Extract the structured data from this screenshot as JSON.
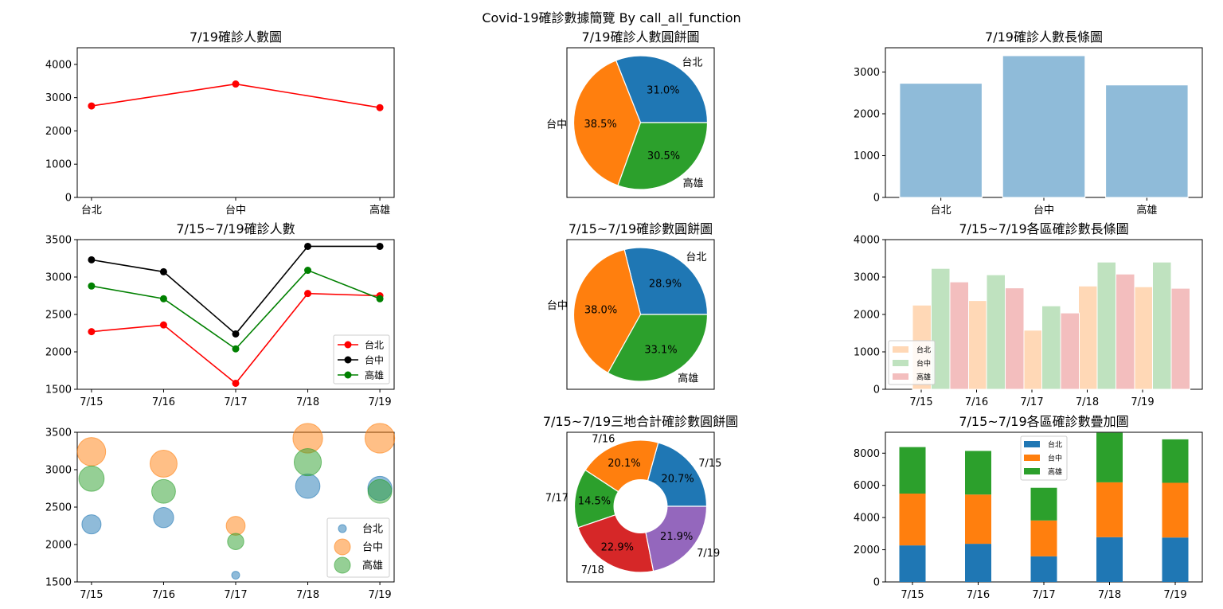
{
  "figure": {
    "suptitle": "Covid-19確診數據簡覽 By call_all_function"
  },
  "colors": {
    "red": "#ff0000",
    "black": "#000000",
    "green": "#008000",
    "c0": "#1f77b4",
    "c1": "#ff7f0e",
    "c2": "#2ca02c",
    "c3": "#d62728",
    "c4": "#9467bd"
  },
  "chart_data": [
    {
      "type": "line",
      "title": "7/19確診人數圖",
      "categories": [
        "台北",
        "台中",
        "高雄"
      ],
      "series": [
        {
          "values": [
            2750,
            3410,
            2700
          ],
          "color": "#ff0000"
        }
      ],
      "ylim": [
        0,
        4500
      ],
      "yticks": [
        0,
        1000,
        2000,
        3000,
        4000
      ]
    },
    {
      "type": "pie",
      "title": "7/19確診人數圓餅圖",
      "labels": [
        "台北",
        "台中",
        "高雄"
      ],
      "values": [
        31.0,
        38.5,
        30.5
      ],
      "pct_labels": [
        "31.0%",
        "38.5%",
        "30.5%"
      ]
    },
    {
      "type": "bar",
      "title": "7/19確診人數長條圖",
      "categories": [
        "台北",
        "台中",
        "高雄"
      ],
      "values": [
        2730,
        3390,
        2690
      ],
      "color": "#1f77b4",
      "ylim": [
        0,
        3580
      ],
      "yticks": [
        0,
        1000,
        2000,
        3000
      ]
    },
    {
      "type": "line",
      "title": "7/15~7/19確診人數",
      "categories": [
        "7/15",
        "7/16",
        "7/17",
        "7/18",
        "7/19"
      ],
      "series": [
        {
          "name": "台北",
          "values": [
            2270,
            2360,
            1580,
            2780,
            2750
          ],
          "color": "#ff0000"
        },
        {
          "name": "台中",
          "values": [
            3230,
            3070,
            2240,
            3410,
            3410
          ],
          "color": "#000000"
        },
        {
          "name": "高雄",
          "values": [
            2880,
            2710,
            2040,
            3090,
            2710
          ],
          "color": "#008000"
        }
      ],
      "ylim": [
        1500,
        3500
      ],
      "yticks": [
        1500,
        2000,
        2500,
        3000,
        3500
      ],
      "legend": "lower-right"
    },
    {
      "type": "pie",
      "title": "7/15~7/19確診數圓餅圖",
      "labels": [
        "台北",
        "台中",
        "高雄"
      ],
      "values": [
        28.9,
        38.0,
        33.1
      ],
      "pct_labels": [
        "28.9%",
        "38.0%",
        "33.1%"
      ]
    },
    {
      "type": "bar",
      "title": "7/15~7/19各區確診數長條圖",
      "categories": [
        "7/15",
        "7/16",
        "7/17",
        "7/18",
        "7/19"
      ],
      "series": [
        {
          "name": "台北",
          "values": [
            2250,
            2370,
            1580,
            2760,
            2740
          ],
          "color": "#ff7f0e"
        },
        {
          "name": "台中",
          "values": [
            3230,
            3060,
            2230,
            3400,
            3400
          ],
          "color": "#2ca02c"
        },
        {
          "name": "高雄",
          "values": [
            2870,
            2710,
            2040,
            3080,
            2700
          ],
          "color": "#d62728"
        }
      ],
      "ylim": [
        0,
        4000
      ],
      "yticks": [
        0,
        1000,
        2000,
        3000,
        4000
      ],
      "legend": "lower-left"
    },
    {
      "type": "scatter",
      "categories": [
        "7/15",
        "7/16",
        "7/17",
        "7/18",
        "7/19"
      ],
      "series": [
        {
          "name": "台北",
          "values": [
            2270,
            2360,
            1590,
            2780,
            2750
          ],
          "color": "#1f77b4"
        },
        {
          "name": "台中",
          "values": [
            3240,
            3080,
            2250,
            3420,
            3420
          ],
          "color": "#ff7f0e"
        },
        {
          "name": "高雄",
          "values": [
            2880,
            2710,
            2040,
            3100,
            2710
          ],
          "color": "#2ca02c"
        }
      ],
      "ylim": [
        1500,
        3500
      ],
      "yticks": [
        1500,
        2000,
        2500,
        3000,
        3500
      ],
      "legend": "lower-right"
    },
    {
      "type": "pie",
      "title": "7/15~7/19三地合計確診數圓餅圖",
      "labels": [
        "7/15",
        "7/16",
        "7/17",
        "7/18",
        "7/19"
      ],
      "values": [
        20.7,
        20.1,
        14.5,
        22.9,
        21.9
      ],
      "pct_labels": [
        "20.7%",
        "20.1%",
        "14.5%",
        "22.9%",
        "21.9%"
      ],
      "donut": true
    },
    {
      "type": "bar",
      "title": "7/15~7/19各區確診數疊加圖",
      "categories": [
        "7/15",
        "7/16",
        "7/17",
        "7/18",
        "7/19"
      ],
      "series": [
        {
          "name": "台北",
          "values": [
            2270,
            2370,
            1590,
            2780,
            2760
          ],
          "color": "#1f77b4"
        },
        {
          "name": "台中",
          "values": [
            3220,
            3060,
            2230,
            3410,
            3400
          ],
          "color": "#ff7f0e"
        },
        {
          "name": "高雄",
          "values": [
            2890,
            2710,
            2030,
            3080,
            2700
          ],
          "color": "#2ca02c"
        }
      ],
      "stacked": true,
      "ylim": [
        0,
        9300
      ],
      "yticks": [
        0,
        2000,
        4000,
        6000,
        8000
      ],
      "legend": "top-center"
    }
  ]
}
